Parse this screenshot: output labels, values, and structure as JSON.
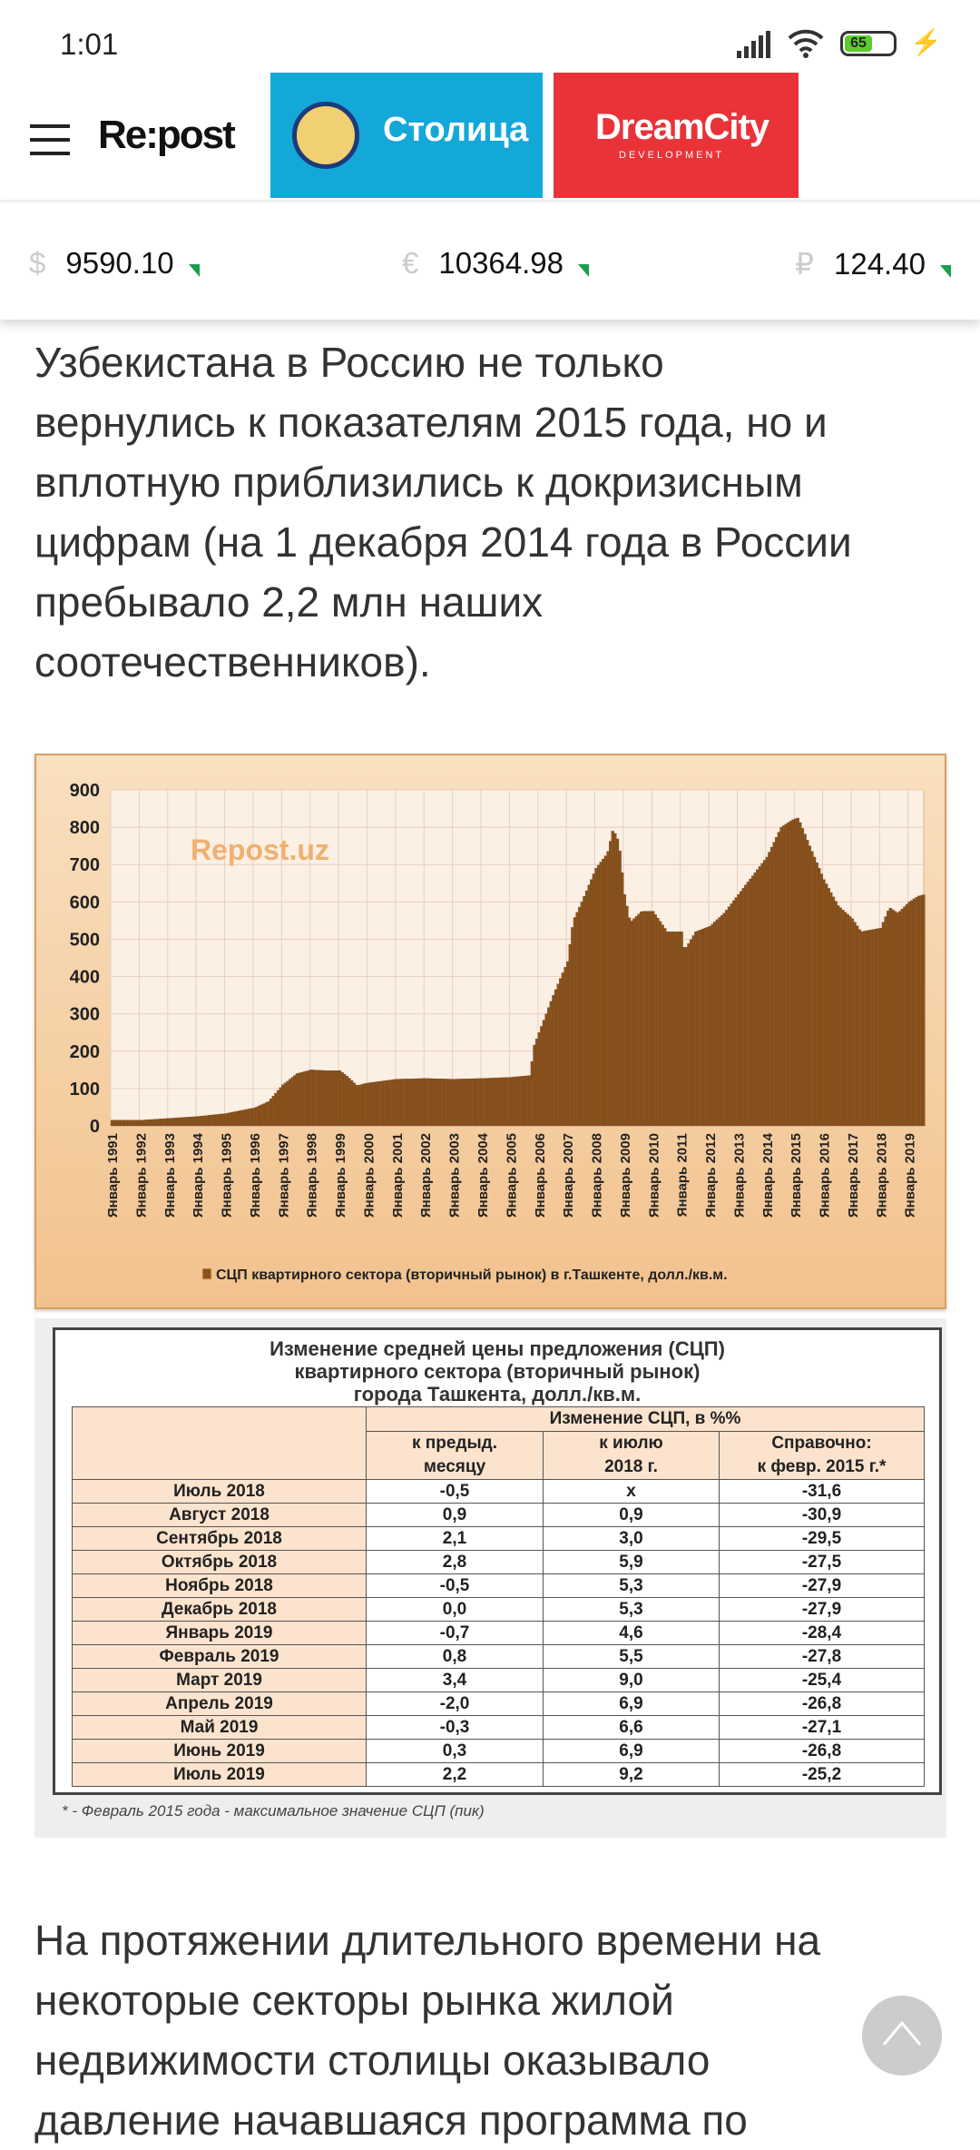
{
  "status": {
    "time": "1:01",
    "battery": "65"
  },
  "header": {
    "logo": "Re:post",
    "ad1": "Столица",
    "ad2_main": "DreamCity",
    "ad2_sub": "DEVELOPMENT"
  },
  "ticker": [
    {
      "symbol": "$",
      "value": "9590.10"
    },
    {
      "symbol": "€",
      "value": "10364.98"
    },
    {
      "symbol": "₽",
      "value": "124.40"
    }
  ],
  "article": {
    "para1": [
      "Узбекистана в Россию не только",
      "вернулись к показателям 2015 года, но и",
      "вплотную приблизились к докризисным",
      "цифрам (на 1 декабря 2014 года в России",
      "пребывало 2,2 млн наших",
      "соотечественников)."
    ],
    "para2": [
      "На протяжении длительного времени на",
      "некоторые секторы рынка жилой",
      "недвижимости столицы оказывало",
      "давление начавшаяся программа по"
    ]
  },
  "chart_data": {
    "type": "area",
    "title": "",
    "watermark": "Repost.uz",
    "legend": "СЦП квартирного сектора (вторичный рынок) в г.Ташкенте, долл./кв.м.",
    "ylim": [
      0,
      900
    ],
    "yticks": [
      0,
      100,
      200,
      300,
      400,
      500,
      600,
      700,
      800,
      900
    ],
    "xticks": [
      "Январь 1991",
      "Январь 1992",
      "Январь 1993",
      "Январь 1994",
      "Январь 1995",
      "Январь 1996",
      "Январь 1997",
      "Январь 1998",
      "Январь 1999",
      "Январь 2000",
      "Январь 2001",
      "Январь 2002",
      "Январь 2003",
      "Январь 2004",
      "Январь 2005",
      "Январь 2006",
      "Январь 2007",
      "Январь 2008",
      "Январь 2009",
      "Январь 2010",
      "Январь 2011",
      "Январь 2012",
      "Январь 2013",
      "Январь 2014",
      "Январь 2015",
      "Январь 2016",
      "Январь 2017",
      "Январь 2018",
      "Январь 2019"
    ],
    "x": [
      1991,
      1992,
      1993,
      1994,
      1995,
      1996,
      1996.5,
      1997,
      1997.5,
      1998,
      1998.5,
      1999,
      1999.3,
      1999.6,
      2000,
      2001,
      2002,
      2003,
      2004,
      2005,
      2005.7,
      2005.8,
      2006,
      2006.5,
      2007,
      2007.2,
      2007.5,
      2008,
      2008.4,
      2008.6,
      2008.8,
      2009,
      2009.2,
      2009.6,
      2010,
      2010.5,
      2011,
      2011.1,
      2011.5,
      2012,
      2012.5,
      2013,
      2013.5,
      2014,
      2014.5,
      2014.9,
      2015.1,
      2015.5,
      2016,
      2016.5,
      2017,
      2017.3,
      2018,
      2018.3,
      2018.6,
      2019,
      2019.3,
      2019.55
    ],
    "y": [
      15,
      15,
      20,
      25,
      33,
      48,
      65,
      110,
      140,
      150,
      148,
      148,
      130,
      108,
      115,
      125,
      127,
      125,
      127,
      130,
      135,
      210,
      250,
      350,
      440,
      550,
      600,
      690,
      730,
      795,
      760,
      620,
      545,
      575,
      575,
      520,
      520,
      470,
      520,
      535,
      570,
      620,
      670,
      720,
      800,
      820,
      825,
      750,
      660,
      590,
      555,
      520,
      530,
      585,
      570,
      600,
      615,
      620
    ]
  },
  "table": {
    "title": [
      "Изменение средней цены предложения (СЦП)",
      "квартирного сектора (вторичный рынок)",
      "города Ташкента, долл./кв.м."
    ],
    "group_header": "Изменение СЦП, в %%",
    "columns": [
      [
        "к предыд.",
        "месяцу"
      ],
      [
        "к июлю",
        "2018 г."
      ],
      [
        "Справочно:",
        "к февр. 2015 г.*"
      ]
    ],
    "rows": [
      [
        "Июль 2018",
        "-0,5",
        "х",
        "-31,6"
      ],
      [
        "Август 2018",
        "0,9",
        "0,9",
        "-30,9"
      ],
      [
        "Сентябрь 2018",
        "2,1",
        "3,0",
        "-29,5"
      ],
      [
        "Октябрь 2018",
        "2,8",
        "5,9",
        "-27,5"
      ],
      [
        "Ноябрь 2018",
        "-0,5",
        "5,3",
        "-27,9"
      ],
      [
        "Декабрь 2018",
        "0,0",
        "5,3",
        "-27,9"
      ],
      [
        "Январь 2019",
        "-0,7",
        "4,6",
        "-28,4"
      ],
      [
        "Февраль 2019",
        "0,8",
        "5,5",
        "-27,8"
      ],
      [
        "Март 2019",
        "3,4",
        "9,0",
        "-25,4"
      ],
      [
        "Апрель 2019",
        "-2,0",
        "6,9",
        "-26,8"
      ],
      [
        "Май 2019",
        "-0,3",
        "6,6",
        "-27,1"
      ],
      [
        "Июнь 2019",
        "0,3",
        "6,9",
        "-26,8"
      ],
      [
        "Июль 2019",
        "2,2",
        "9,2",
        "-25,2"
      ]
    ],
    "footnote": "* - Февраль 2015 года - максимальное значение СЦП (пик)"
  }
}
